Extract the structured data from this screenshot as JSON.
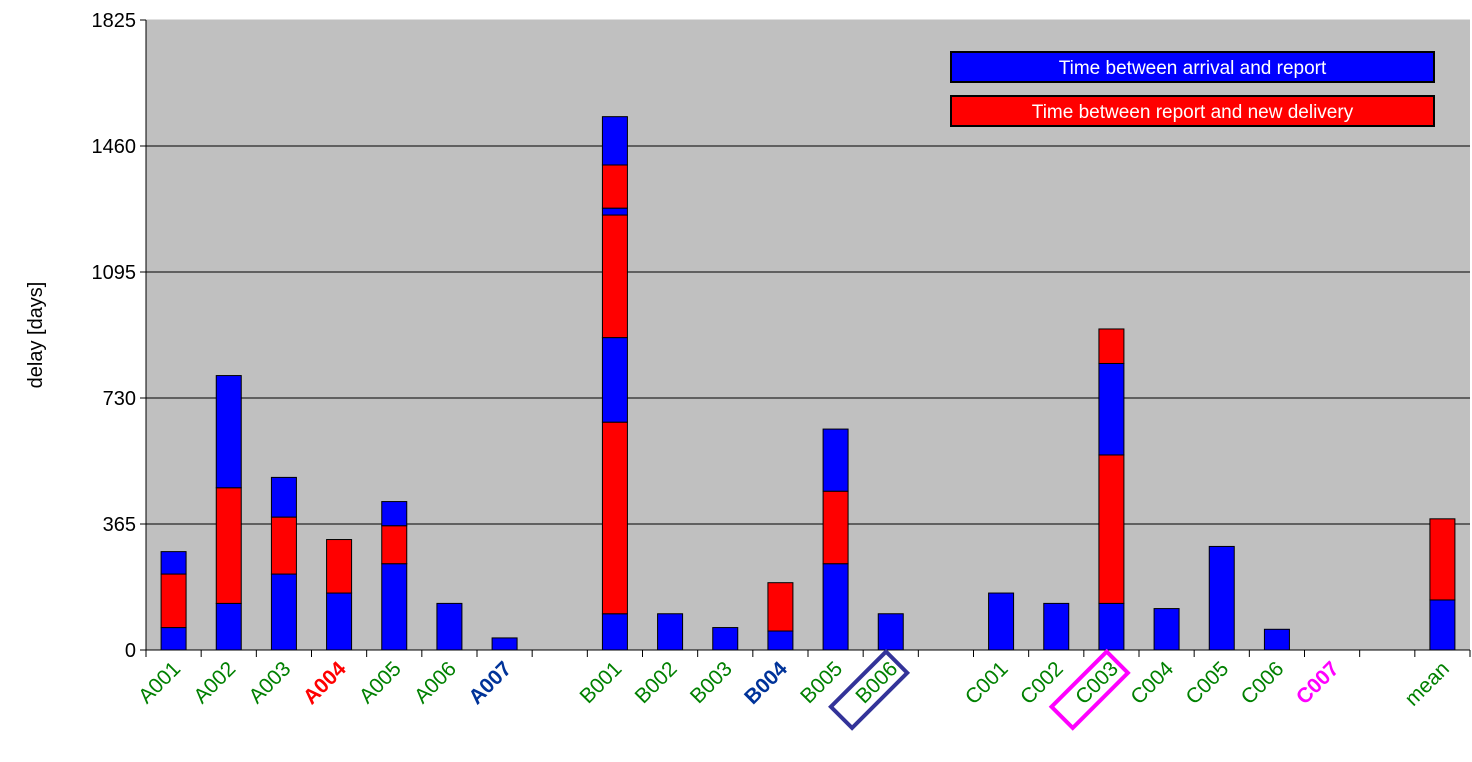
{
  "chart_data": {
    "type": "bar",
    "stacked": true,
    "ylabel": "delay [days]",
    "xlabel": "",
    "ylim": [
      0,
      1825
    ],
    "yticks": [
      0,
      365,
      730,
      1095,
      1460,
      1825
    ],
    "grid": true,
    "legend_position": "top-right",
    "background": "#c0c0c0",
    "colors": {
      "arrival": "#0000ff",
      "report": "#ff0000"
    },
    "legend": [
      {
        "label": "Time between arrival and report",
        "color": "#0000ff"
      },
      {
        "label": "Time between report and new delivery",
        "color": "#ff0000"
      }
    ],
    "categories": [
      {
        "label": "A001",
        "color": "#008000",
        "bold": false,
        "box": null,
        "segments": [
          {
            "s": "arrival",
            "v": 65
          },
          {
            "s": "report",
            "v": 155
          },
          {
            "s": "arrival",
            "v": 65
          }
        ]
      },
      {
        "label": "A002",
        "color": "#008000",
        "bold": false,
        "box": null,
        "segments": [
          {
            "s": "arrival",
            "v": 135
          },
          {
            "s": "report",
            "v": 335
          },
          {
            "s": "arrival",
            "v": 325
          }
        ]
      },
      {
        "label": "A003",
        "color": "#008000",
        "bold": false,
        "box": null,
        "segments": [
          {
            "s": "arrival",
            "v": 220
          },
          {
            "s": "report",
            "v": 165
          },
          {
            "s": "arrival",
            "v": 115
          }
        ]
      },
      {
        "label": "A004",
        "color": "#ff0000",
        "bold": true,
        "box": null,
        "segments": [
          {
            "s": "arrival",
            "v": 165
          },
          {
            "s": "report",
            "v": 155
          }
        ]
      },
      {
        "label": "A005",
        "color": "#008000",
        "bold": false,
        "box": null,
        "segments": [
          {
            "s": "arrival",
            "v": 250
          },
          {
            "s": "report",
            "v": 110
          },
          {
            "s": "arrival",
            "v": 70
          }
        ]
      },
      {
        "label": "A006",
        "color": "#008000",
        "bold": false,
        "box": null,
        "segments": [
          {
            "s": "arrival",
            "v": 135
          }
        ]
      },
      {
        "label": "A007",
        "color": "#003399",
        "bold": true,
        "box": null,
        "segments": [
          {
            "s": "arrival",
            "v": 35
          }
        ]
      },
      {
        "label": "",
        "color": "#008000",
        "bold": false,
        "box": null,
        "segments": []
      },
      {
        "label": "B001",
        "color": "#008000",
        "bold": false,
        "box": null,
        "segments": [
          {
            "s": "arrival",
            "v": 105
          },
          {
            "s": "report",
            "v": 555
          },
          {
            "s": "arrival",
            "v": 245
          },
          {
            "s": "report",
            "v": 355
          },
          {
            "s": "arrival",
            "v": 20
          },
          {
            "s": "report",
            "v": 125
          },
          {
            "s": "arrival",
            "v": 140
          }
        ]
      },
      {
        "label": "B002",
        "color": "#008000",
        "bold": false,
        "box": null,
        "segments": [
          {
            "s": "arrival",
            "v": 105
          }
        ]
      },
      {
        "label": "B003",
        "color": "#008000",
        "bold": false,
        "box": null,
        "segments": [
          {
            "s": "arrival",
            "v": 65
          }
        ]
      },
      {
        "label": "B004",
        "color": "#003399",
        "bold": true,
        "box": null,
        "segments": [
          {
            "s": "arrival",
            "v": 55
          },
          {
            "s": "report",
            "v": 140
          }
        ]
      },
      {
        "label": "B005",
        "color": "#008000",
        "bold": false,
        "box": null,
        "segments": [
          {
            "s": "arrival",
            "v": 250
          },
          {
            "s": "report",
            "v": 210
          },
          {
            "s": "arrival",
            "v": 180
          }
        ]
      },
      {
        "label": "B006",
        "color": "#008000",
        "bold": false,
        "box": "#333399",
        "segments": [
          {
            "s": "arrival",
            "v": 105
          }
        ]
      },
      {
        "label": "",
        "color": "#008000",
        "bold": false,
        "box": null,
        "segments": []
      },
      {
        "label": "C001",
        "color": "#008000",
        "bold": false,
        "box": null,
        "segments": [
          {
            "s": "arrival",
            "v": 165
          }
        ]
      },
      {
        "label": "C002",
        "color": "#008000",
        "bold": false,
        "box": null,
        "segments": [
          {
            "s": "arrival",
            "v": 135
          }
        ]
      },
      {
        "label": "C003",
        "color": "#008000",
        "bold": false,
        "box": "#ff00ff",
        "segments": [
          {
            "s": "arrival",
            "v": 135
          },
          {
            "s": "report",
            "v": 430
          },
          {
            "s": "arrival",
            "v": 265
          },
          {
            "s": "report",
            "v": 100
          }
        ]
      },
      {
        "label": "C004",
        "color": "#008000",
        "bold": false,
        "box": null,
        "segments": [
          {
            "s": "arrival",
            "v": 120
          }
        ]
      },
      {
        "label": "C005",
        "color": "#008000",
        "bold": false,
        "box": null,
        "segments": [
          {
            "s": "arrival",
            "v": 300
          }
        ]
      },
      {
        "label": "C006",
        "color": "#008000",
        "bold": false,
        "box": null,
        "segments": [
          {
            "s": "arrival",
            "v": 60
          }
        ]
      },
      {
        "label": "C007",
        "color": "#ff00ff",
        "bold": true,
        "box": null,
        "segments": []
      },
      {
        "label": "",
        "color": "#008000",
        "bold": false,
        "box": null,
        "segments": []
      },
      {
        "label": "mean",
        "color": "#008000",
        "bold": false,
        "box": null,
        "segments": [
          {
            "s": "arrival",
            "v": 145
          },
          {
            "s": "report",
            "v": 235
          }
        ]
      }
    ]
  }
}
